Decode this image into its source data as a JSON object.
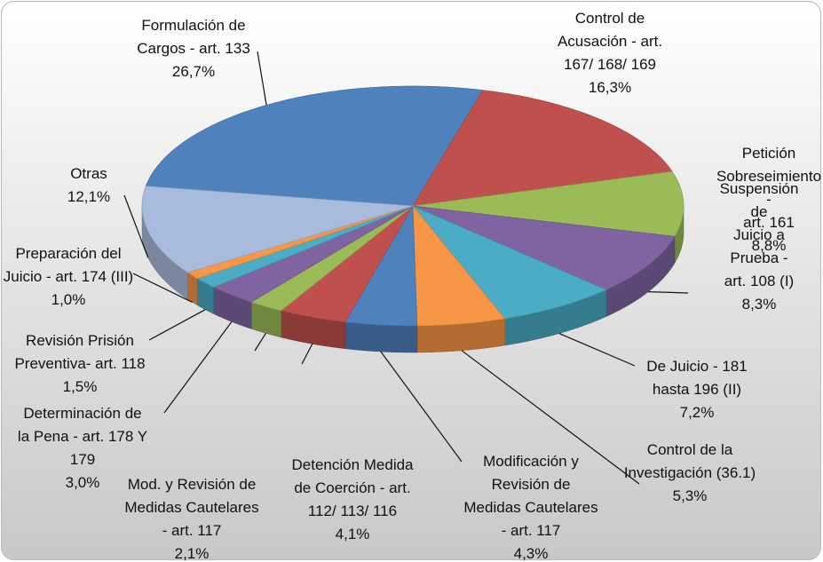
{
  "chart_data": {
    "type": "pie3d",
    "categories": [
      "Formulación de\nCargos - art. 133",
      "Control de\nAcusación - art.\n167/ 168/ 169",
      "Petición\nSobreseimiento -\nart. 161",
      "Suspensión de\nJuicio a Prueba -\nart. 108 (I)",
      "De Juicio - 181\nhasta 196 (II)",
      "Control de la\nInvestigación (36.1)",
      "Modificación y\nRevisión de\nMedidas Cautelares\n- art. 117",
      "Detención Medida\nde Coerción - art.\n112/ 113/ 116",
      "Mod. y Revisión de\nMedidas Cautelares\n- art. 117",
      "Determinación de\nla Pena - art. 178 Y\n179",
      "Revisión  Prisión\nPreventiva- art. 118",
      "Preparación del\nJuicio - art. 174 (III)",
      "Otras"
    ],
    "values": [
      26.7,
      16.3,
      8.8,
      8.3,
      7.2,
      5.3,
      4.3,
      4.1,
      2.1,
      3.0,
      1.5,
      1.0,
      12.1
    ],
    "value_labels": [
      "26,7%",
      "16,3%",
      "8,8%",
      "8,3%",
      "7,2%",
      "5,3%",
      "4,3%",
      "4,1%",
      "2,1%",
      "3,0%",
      "1,5%",
      "1,0%",
      "12,1%"
    ],
    "colors": [
      "#4f81bd",
      "#c0504d",
      "#9bbb59",
      "#8064a2",
      "#4bacc6",
      "#f79646",
      "#4f81bd",
      "#c0504d",
      "#9bbb59",
      "#8064a2",
      "#4bacc6",
      "#f79646",
      "#a9bbdd"
    ]
  }
}
